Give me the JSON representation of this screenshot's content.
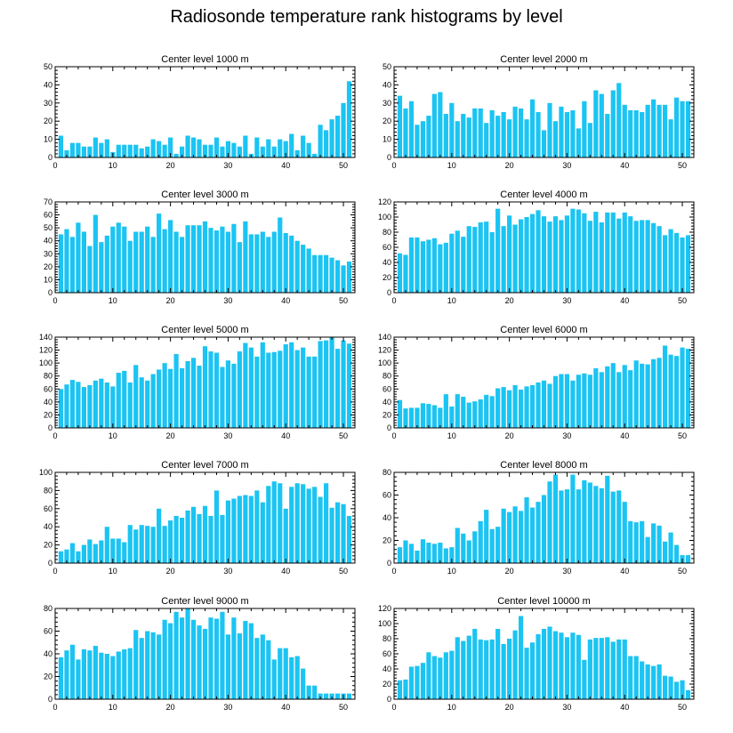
{
  "title": "Radiosonde temperature rank histograms by level",
  "chart_data": [
    {
      "type": "bar",
      "title": "Center level 1000 m",
      "xlim": [
        0,
        52
      ],
      "ylim": [
        0,
        50
      ],
      "xticks": [
        0,
        10,
        20,
        30,
        40,
        50
      ],
      "yticks": [
        0,
        10,
        20,
        30,
        40,
        50
      ],
      "color": "#1bc4f2",
      "x": [
        1,
        2,
        3,
        4,
        5,
        6,
        7,
        8,
        9,
        10,
        11,
        12,
        13,
        14,
        15,
        16,
        17,
        18,
        19,
        20,
        21,
        22,
        23,
        24,
        25,
        26,
        27,
        28,
        29,
        30,
        31,
        32,
        33,
        34,
        35,
        36,
        37,
        38,
        39,
        40,
        41,
        42,
        43,
        44,
        45,
        46,
        47,
        48,
        49,
        50,
        51
      ],
      "values": [
        12,
        4,
        8,
        8,
        6,
        6,
        11,
        8,
        10,
        3,
        7,
        7,
        7,
        7,
        5,
        6,
        10,
        9,
        7,
        11,
        2,
        6,
        12,
        11,
        10,
        7,
        7,
        11,
        6,
        9,
        8,
        6,
        12,
        2,
        11,
        6,
        10,
        6,
        10,
        9,
        13,
        4,
        12,
        8,
        2,
        18,
        15,
        21,
        23,
        30,
        42
      ]
    },
    {
      "type": "bar",
      "title": "Center level 2000 m",
      "xlim": [
        0,
        52
      ],
      "ylim": [
        0,
        50
      ],
      "xticks": [
        0,
        10,
        20,
        30,
        40,
        50
      ],
      "yticks": [
        0,
        10,
        20,
        30,
        40,
        50
      ],
      "color": "#1bc4f2",
      "x": [
        1,
        2,
        3,
        4,
        5,
        6,
        7,
        8,
        9,
        10,
        11,
        12,
        13,
        14,
        15,
        16,
        17,
        18,
        19,
        20,
        21,
        22,
        23,
        24,
        25,
        26,
        27,
        28,
        29,
        30,
        31,
        32,
        33,
        34,
        35,
        36,
        37,
        38,
        39,
        40,
        41,
        42,
        43,
        44,
        45,
        46,
        47,
        48,
        49,
        50,
        51
      ],
      "values": [
        34,
        27,
        31,
        18,
        20,
        23,
        35,
        36,
        24,
        30,
        20,
        24,
        22,
        27,
        27,
        19,
        26,
        23,
        25,
        21,
        28,
        27,
        21,
        32,
        25,
        15,
        30,
        20,
        28,
        25,
        26,
        16,
        31,
        19,
        37,
        35,
        24,
        37,
        41,
        29,
        26,
        26,
        25,
        29,
        32,
        29,
        29,
        21,
        33,
        31,
        31
      ]
    },
    {
      "type": "bar",
      "title": "Center level 3000 m",
      "xlim": [
        0,
        52
      ],
      "ylim": [
        0,
        70
      ],
      "xticks": [
        0,
        10,
        20,
        30,
        40,
        50
      ],
      "yticks": [
        0,
        10,
        20,
        30,
        40,
        50,
        60,
        70
      ],
      "color": "#1bc4f2",
      "x": [
        1,
        2,
        3,
        4,
        5,
        6,
        7,
        8,
        9,
        10,
        11,
        12,
        13,
        14,
        15,
        16,
        17,
        18,
        19,
        20,
        21,
        22,
        23,
        24,
        25,
        26,
        27,
        28,
        29,
        30,
        31,
        32,
        33,
        34,
        35,
        36,
        37,
        38,
        39,
        40,
        41,
        42,
        43,
        44,
        45,
        46,
        47,
        48,
        49,
        50,
        51
      ],
      "values": [
        45,
        49,
        43,
        54,
        47,
        36,
        60,
        39,
        44,
        51,
        54,
        51,
        40,
        47,
        47,
        51,
        43,
        61,
        49,
        56,
        47,
        43,
        52,
        52,
        52,
        55,
        50,
        48,
        51,
        47,
        53,
        39,
        55,
        45,
        45,
        47,
        43,
        47,
        58,
        46,
        44,
        40,
        37,
        34,
        29,
        29,
        29,
        27,
        25,
        21,
        24
      ]
    },
    {
      "type": "bar",
      "title": "Center level 4000 m",
      "xlim": [
        0,
        52
      ],
      "ylim": [
        0,
        120
      ],
      "xticks": [
        0,
        10,
        20,
        30,
        40,
        50
      ],
      "yticks": [
        0,
        20,
        40,
        60,
        80,
        100,
        120
      ],
      "color": "#1bc4f2",
      "x": [
        1,
        2,
        3,
        4,
        5,
        6,
        7,
        8,
        9,
        10,
        11,
        12,
        13,
        14,
        15,
        16,
        17,
        18,
        19,
        20,
        21,
        22,
        23,
        24,
        25,
        26,
        27,
        28,
        29,
        30,
        31,
        32,
        33,
        34,
        35,
        36,
        37,
        38,
        39,
        40,
        41,
        42,
        43,
        44,
        45,
        46,
        47,
        48,
        49,
        50,
        51
      ],
      "values": [
        52,
        50,
        73,
        73,
        68,
        70,
        72,
        64,
        66,
        78,
        82,
        74,
        88,
        87,
        93,
        94,
        80,
        111,
        88,
        102,
        90,
        97,
        100,
        104,
        109,
        101,
        94,
        101,
        96,
        102,
        111,
        110,
        105,
        95,
        107,
        93,
        106,
        106,
        98,
        106,
        101,
        95,
        96,
        96,
        92,
        88,
        76,
        84,
        79,
        73,
        76
      ]
    },
    {
      "type": "bar",
      "title": "Center level 5000 m",
      "xlim": [
        0,
        52
      ],
      "ylim": [
        0,
        140
      ],
      "xticks": [
        0,
        10,
        20,
        30,
        40,
        50
      ],
      "yticks": [
        0,
        20,
        40,
        60,
        80,
        100,
        120,
        140
      ],
      "color": "#1bc4f2",
      "x": [
        1,
        2,
        3,
        4,
        5,
        6,
        7,
        8,
        9,
        10,
        11,
        12,
        13,
        14,
        15,
        16,
        17,
        18,
        19,
        20,
        21,
        22,
        23,
        24,
        25,
        26,
        27,
        28,
        29,
        30,
        31,
        32,
        33,
        34,
        35,
        36,
        37,
        38,
        39,
        40,
        41,
        42,
        43,
        44,
        45,
        46,
        47,
        48,
        49,
        50,
        51
      ],
      "values": [
        60,
        67,
        74,
        71,
        63,
        66,
        73,
        76,
        70,
        64,
        85,
        88,
        70,
        97,
        78,
        73,
        83,
        90,
        100,
        91,
        114,
        92,
        103,
        108,
        96,
        126,
        118,
        116,
        94,
        104,
        99,
        118,
        131,
        124,
        110,
        132,
        116,
        117,
        119,
        129,
        132,
        120,
        124,
        110,
        110,
        134,
        135,
        140,
        122,
        135,
        130
      ]
    },
    {
      "type": "bar",
      "title": "Center level 6000 m",
      "xlim": [
        0,
        52
      ],
      "ylim": [
        0,
        140
      ],
      "xticks": [
        0,
        10,
        20,
        30,
        40,
        50
      ],
      "yticks": [
        0,
        20,
        40,
        60,
        80,
        100,
        120,
        140
      ],
      "color": "#1bc4f2",
      "x": [
        1,
        2,
        3,
        4,
        5,
        6,
        7,
        8,
        9,
        10,
        11,
        12,
        13,
        14,
        15,
        16,
        17,
        18,
        19,
        20,
        21,
        22,
        23,
        24,
        25,
        26,
        27,
        28,
        29,
        30,
        31,
        32,
        33,
        34,
        35,
        36,
        37,
        38,
        39,
        40,
        41,
        42,
        43,
        44,
        45,
        46,
        47,
        48,
        49,
        50,
        51
      ],
      "values": [
        43,
        30,
        31,
        31,
        38,
        37,
        35,
        31,
        52,
        33,
        52,
        48,
        39,
        41,
        44,
        51,
        49,
        61,
        63,
        58,
        66,
        59,
        64,
        66,
        70,
        73,
        68,
        80,
        83,
        83,
        73,
        82,
        84,
        82,
        92,
        86,
        95,
        100,
        86,
        97,
        89,
        104,
        99,
        98,
        106,
        108,
        127,
        113,
        111,
        124,
        122
      ]
    },
    {
      "type": "bar",
      "title": "Center level 7000 m",
      "xlim": [
        0,
        52
      ],
      "ylim": [
        0,
        100
      ],
      "xticks": [
        0,
        10,
        20,
        30,
        40,
        50
      ],
      "yticks": [
        0,
        20,
        40,
        60,
        80,
        100
      ],
      "color": "#1bc4f2",
      "x": [
        1,
        2,
        3,
        4,
        5,
        6,
        7,
        8,
        9,
        10,
        11,
        12,
        13,
        14,
        15,
        16,
        17,
        18,
        19,
        20,
        21,
        22,
        23,
        24,
        25,
        26,
        27,
        28,
        29,
        30,
        31,
        32,
        33,
        34,
        35,
        36,
        37,
        38,
        39,
        40,
        41,
        42,
        43,
        44,
        45,
        46,
        47,
        48,
        49,
        50,
        51
      ],
      "values": [
        13,
        15,
        22,
        13,
        20,
        26,
        21,
        25,
        40,
        27,
        27,
        23,
        42,
        37,
        42,
        41,
        40,
        60,
        41,
        47,
        52,
        50,
        58,
        62,
        54,
        63,
        52,
        80,
        53,
        69,
        71,
        74,
        75,
        74,
        80,
        67,
        85,
        90,
        88,
        60,
        84,
        88,
        87,
        82,
        84,
        73,
        88,
        61,
        67,
        65,
        52
      ]
    },
    {
      "type": "bar",
      "title": "Center level 8000 m",
      "xlim": [
        0,
        52
      ],
      "ylim": [
        0,
        80
      ],
      "xticks": [
        0,
        10,
        20,
        30,
        40,
        50
      ],
      "yticks": [
        0,
        20,
        40,
        60,
        80
      ],
      "color": "#1bc4f2",
      "x": [
        1,
        2,
        3,
        4,
        5,
        6,
        7,
        8,
        9,
        10,
        11,
        12,
        13,
        14,
        15,
        16,
        17,
        18,
        19,
        20,
        21,
        22,
        23,
        24,
        25,
        26,
        27,
        28,
        29,
        30,
        31,
        32,
        33,
        34,
        35,
        36,
        37,
        38,
        39,
        40,
        41,
        42,
        43,
        44,
        45,
        46,
        47,
        48,
        49,
        50,
        51
      ],
      "values": [
        14,
        20,
        17,
        11,
        21,
        18,
        17,
        18,
        13,
        14,
        31,
        26,
        20,
        28,
        37,
        47,
        30,
        32,
        48,
        45,
        50,
        46,
        58,
        49,
        54,
        60,
        72,
        78,
        64,
        65,
        78,
        65,
        73,
        71,
        68,
        66,
        77,
        63,
        64,
        54,
        37,
        36,
        37,
        23,
        35,
        33,
        19,
        27,
        16,
        7,
        7
      ]
    },
    {
      "type": "bar",
      "title": "Center level 9000 m",
      "xlim": [
        0,
        52
      ],
      "ylim": [
        0,
        80
      ],
      "xticks": [
        0,
        10,
        20,
        30,
        40,
        50
      ],
      "yticks": [
        0,
        20,
        40,
        60,
        80
      ],
      "color": "#1bc4f2",
      "x": [
        1,
        2,
        3,
        4,
        5,
        6,
        7,
        8,
        9,
        10,
        11,
        12,
        13,
        14,
        15,
        16,
        17,
        18,
        19,
        20,
        21,
        22,
        23,
        24,
        25,
        26,
        27,
        28,
        29,
        30,
        31,
        32,
        33,
        34,
        35,
        36,
        37,
        38,
        39,
        40,
        41,
        42,
        43,
        44,
        45,
        46,
        47,
        48,
        49,
        50,
        51
      ],
      "values": [
        37,
        43,
        48,
        35,
        44,
        43,
        47,
        41,
        40,
        38,
        42,
        44,
        45,
        61,
        54,
        60,
        59,
        57,
        70,
        67,
        77,
        72,
        80,
        70,
        65,
        62,
        72,
        71,
        77,
        57,
        72,
        58,
        69,
        67,
        54,
        57,
        52,
        35,
        45,
        45,
        37,
        38,
        27,
        12,
        12,
        5,
        5,
        5,
        5,
        5,
        5
      ]
    },
    {
      "type": "bar",
      "title": "Center level 10000 m",
      "xlim": [
        0,
        52
      ],
      "ylim": [
        0,
        120
      ],
      "xticks": [
        0,
        10,
        20,
        30,
        40,
        50
      ],
      "yticks": [
        0,
        20,
        40,
        60,
        80,
        100,
        120
      ],
      "color": "#1bc4f2",
      "x": [
        1,
        2,
        3,
        4,
        5,
        6,
        7,
        8,
        9,
        10,
        11,
        12,
        13,
        14,
        15,
        16,
        17,
        18,
        19,
        20,
        21,
        22,
        23,
        24,
        25,
        26,
        27,
        28,
        29,
        30,
        31,
        32,
        33,
        34,
        35,
        36,
        37,
        38,
        39,
        40,
        41,
        42,
        43,
        44,
        45,
        46,
        47,
        48,
        49,
        50,
        51
      ],
      "values": [
        25,
        26,
        43,
        44,
        48,
        62,
        57,
        55,
        62,
        64,
        82,
        77,
        84,
        93,
        79,
        78,
        79,
        93,
        73,
        80,
        91,
        110,
        68,
        75,
        86,
        93,
        96,
        90,
        88,
        82,
        88,
        85,
        52,
        79,
        81,
        81,
        82,
        76,
        79,
        79,
        57,
        57,
        50,
        46,
        44,
        46,
        31,
        30,
        23,
        25,
        12
      ]
    }
  ]
}
